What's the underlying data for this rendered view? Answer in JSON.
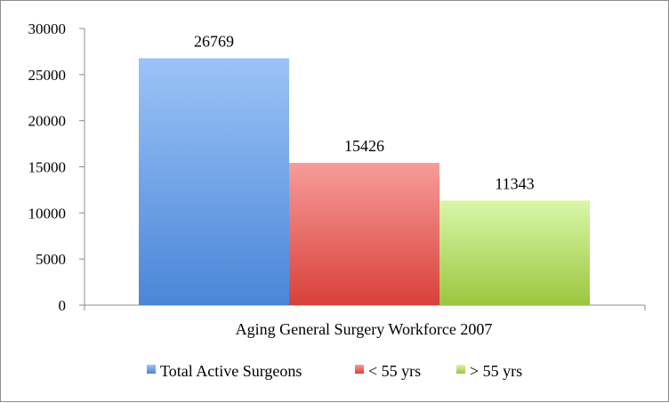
{
  "chart_data": {
    "type": "bar",
    "categories": [
      "Aging General Surgery Workforce 2007"
    ],
    "series": [
      {
        "name": "Total Active Surgeons",
        "values": [
          26769
        ],
        "color": "#4a86d8",
        "color_light": "#9cc3f7"
      },
      {
        "name": "< 55 yrs",
        "values": [
          15426
        ],
        "color": "#d9403a",
        "color_light": "#f79c99"
      },
      {
        "name": "> 55 yrs",
        "values": [
          11343
        ],
        "color": "#9bc63f",
        "color_light": "#d8f7a8"
      }
    ],
    "data_labels": [
      "26769",
      "15426",
      "11343"
    ],
    "ylim": [
      0,
      30000
    ],
    "yticks": [
      0,
      5000,
      10000,
      15000,
      20000,
      25000,
      30000
    ],
    "ytick_labels": [
      "0",
      "5000",
      "10000",
      "15000",
      "20000",
      "25000",
      "30000"
    ],
    "grid": false,
    "legend_position": "bottom",
    "title": "",
    "xlabel": "",
    "ylabel": ""
  }
}
